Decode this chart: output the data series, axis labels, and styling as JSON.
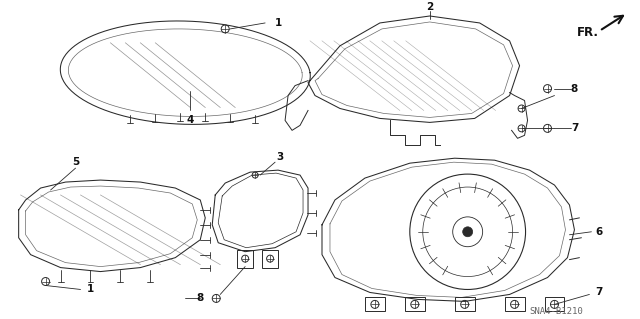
{
  "background_color": "#ffffff",
  "diagram_id": "SNA4-B1210",
  "line_color": "#2a2a2a",
  "text_color": "#111111",
  "fig_width": 6.4,
  "fig_height": 3.19,
  "dpi": 100,
  "label_fontsize": 7.5
}
